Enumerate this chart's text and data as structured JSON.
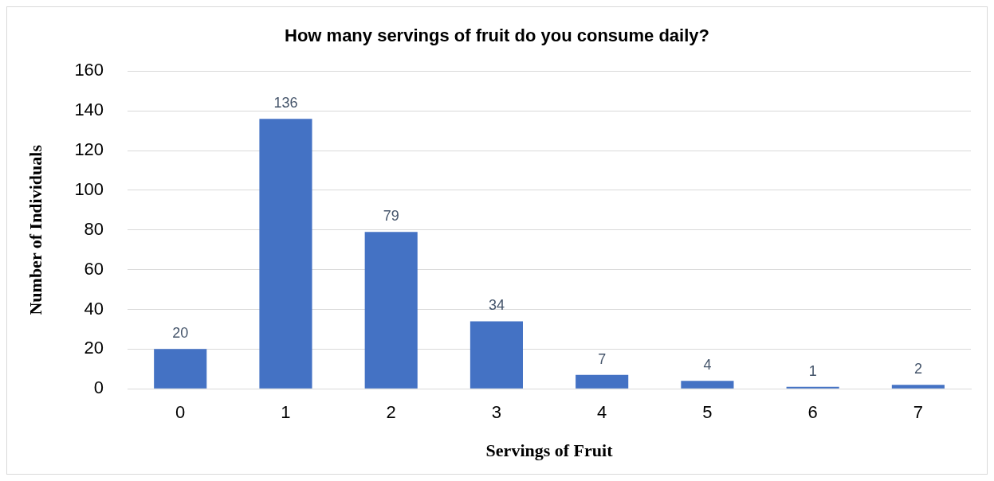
{
  "chart_data": {
    "type": "bar",
    "title": "How many servings of fruit do you consume daily?",
    "xlabel": "Servings of Fruit",
    "ylabel": "Number of Individuals",
    "categories": [
      "0",
      "1",
      "2",
      "3",
      "4",
      "5",
      "6",
      "7"
    ],
    "values": [
      20,
      136,
      79,
      34,
      7,
      4,
      1,
      2
    ],
    "color": "#4472c4",
    "ylim": [
      0,
      160
    ],
    "yticks": [
      0,
      20,
      40,
      60,
      80,
      100,
      120,
      140,
      160
    ],
    "grid": "y",
    "data_labels": true,
    "legend": false
  }
}
